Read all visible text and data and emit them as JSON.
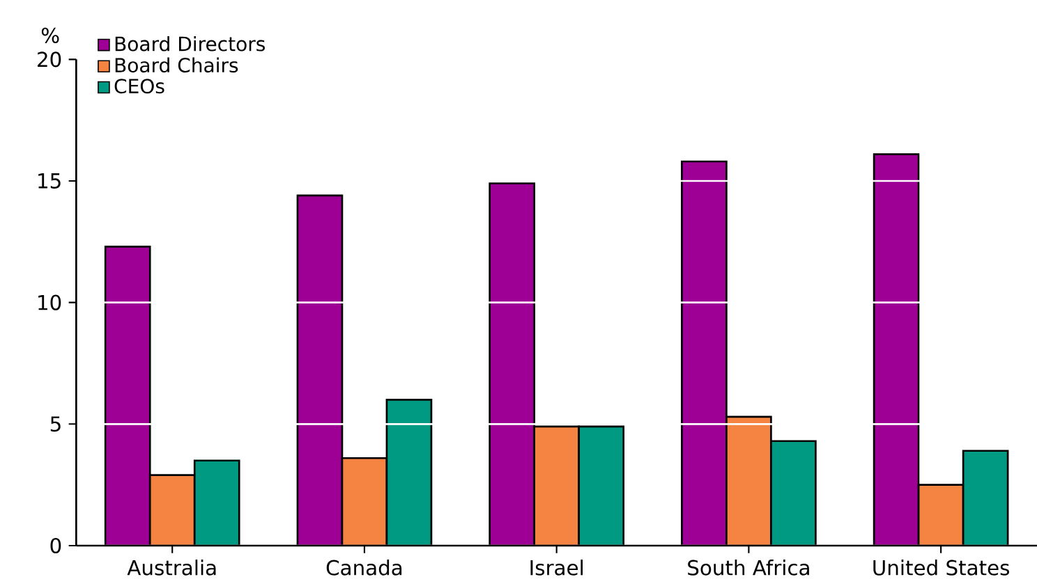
{
  "chart_data": {
    "type": "bar",
    "ylabel": "%",
    "categories": [
      "Australia",
      "Canada",
      "Israel",
      "South Africa",
      "United States"
    ],
    "series": [
      {
        "name": "Board Directors",
        "color": "#9e0096",
        "values": [
          12.3,
          14.4,
          14.9,
          15.8,
          16.1
        ]
      },
      {
        "name": "Board Chairs",
        "color": "#f58442",
        "values": [
          2.9,
          3.6,
          4.9,
          5.3,
          2.5
        ]
      },
      {
        "name": "CEOs",
        "color": "#009a82",
        "values": [
          3.5,
          6.0,
          4.9,
          4.3,
          3.9
        ]
      }
    ],
    "ylim": [
      0,
      20
    ],
    "yticks": [
      0,
      5,
      10,
      15,
      20
    ],
    "grid": "y",
    "legend": "top left"
  }
}
